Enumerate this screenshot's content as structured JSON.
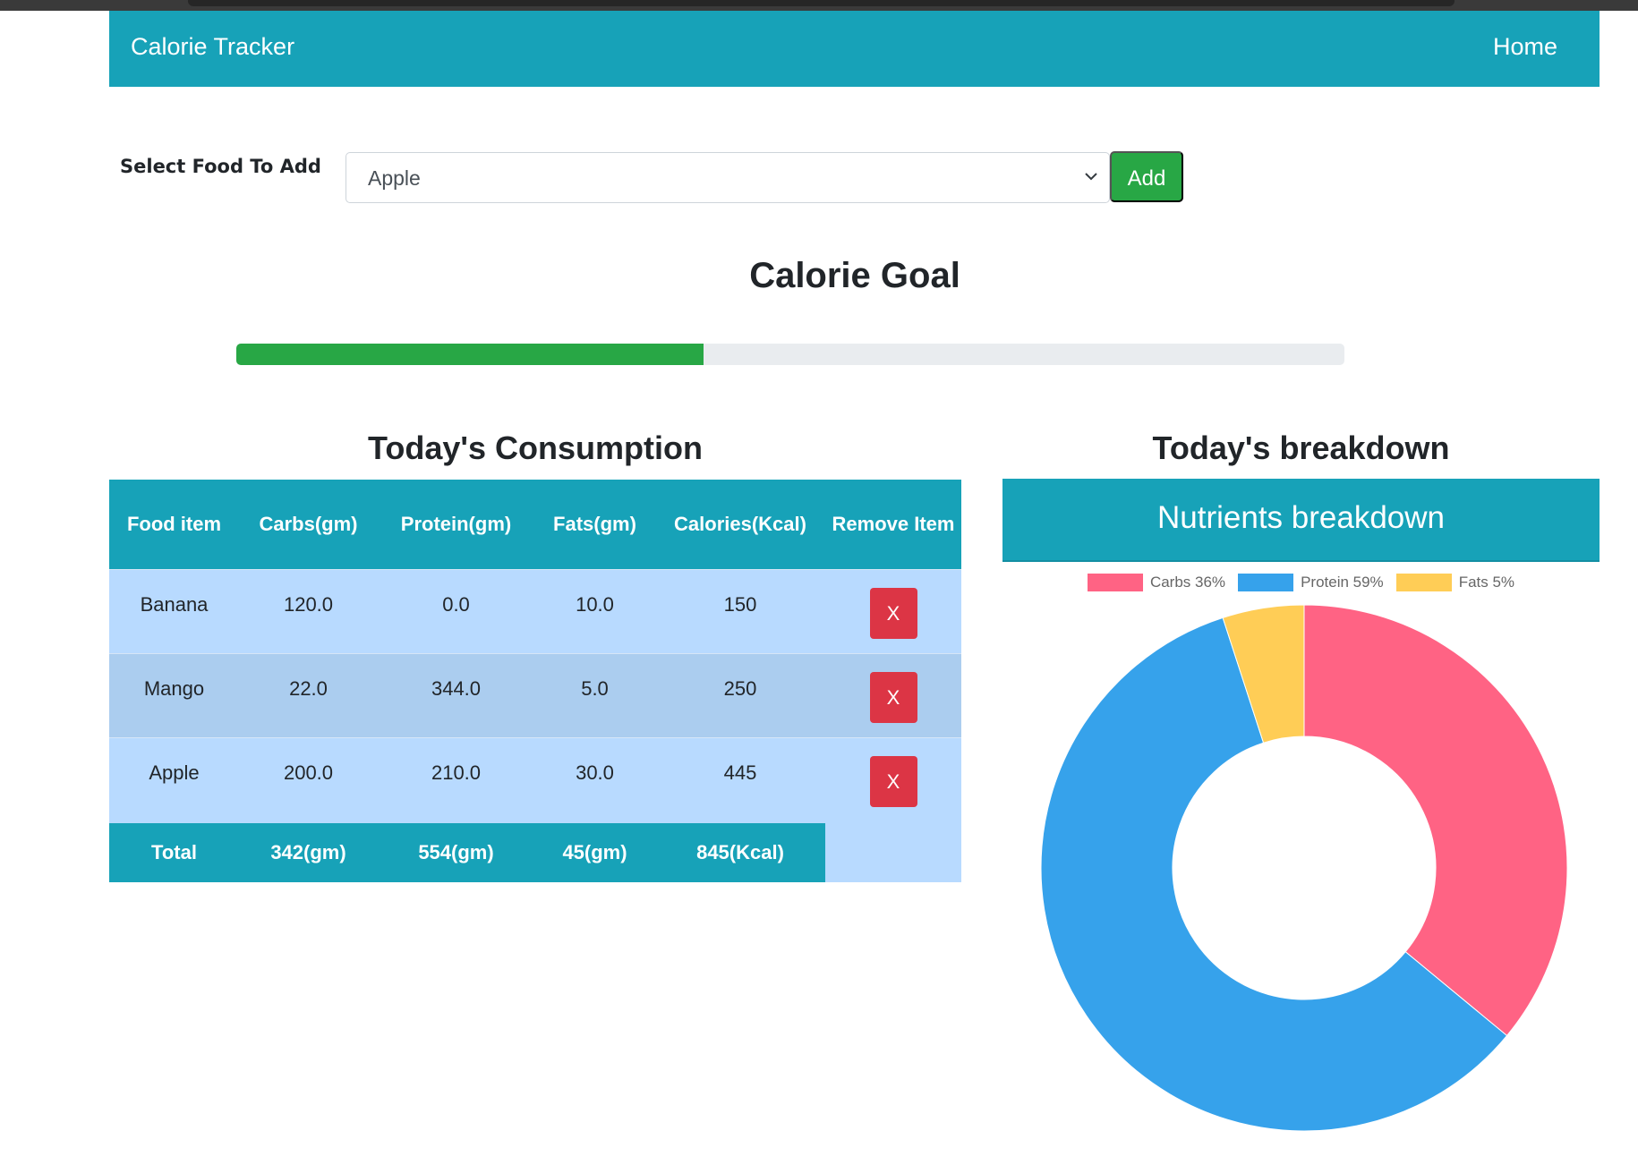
{
  "navbar": {
    "brand": "Calorie Tracker",
    "home_link": "Home",
    "background": "#17a2b8"
  },
  "food_form": {
    "label": "Select Food To Add",
    "selected_value": "Apple",
    "add_button": "Add",
    "icons": {
      "dropdown": "chevron-down-icon"
    }
  },
  "goal": {
    "title": "Calorie Goal",
    "progress_percent": 42.2,
    "fill_color": "#28a745"
  },
  "consumption": {
    "title": "Today's Consumption",
    "columns": [
      "Food item",
      "Carbs(gm)",
      "Protein(gm)",
      "Fats(gm)",
      "Calories(Kcal)",
      "Remove Item"
    ],
    "rows": [
      {
        "food": "Banana",
        "carbs": "120.0",
        "protein": "0.0",
        "fats": "10.0",
        "calories": "150",
        "remove": "X"
      },
      {
        "food": "Mango",
        "carbs": "22.0",
        "protein": "344.0",
        "fats": "5.0",
        "calories": "250",
        "remove": "X"
      },
      {
        "food": "Apple",
        "carbs": "200.0",
        "protein": "210.0",
        "fats": "30.0",
        "calories": "445",
        "remove": "X"
      }
    ],
    "total": {
      "label": "Total",
      "carbs": "342(gm)",
      "protein": "554(gm)",
      "fats": "45(gm)",
      "calories": "845(Kcal)"
    }
  },
  "breakdown": {
    "title": "Today's breakdown",
    "chart_title": "Nutrients breakdown"
  },
  "chart_data": {
    "type": "pie",
    "subtype": "doughnut",
    "title": "Nutrients breakdown",
    "categories": [
      "Carbs 36%",
      "Protein 59%",
      "Fats 5%"
    ],
    "values": [
      36,
      59,
      5
    ],
    "colors": [
      "#ff6384",
      "#36a2eb",
      "#ffcd56"
    ],
    "legend_position": "top"
  }
}
